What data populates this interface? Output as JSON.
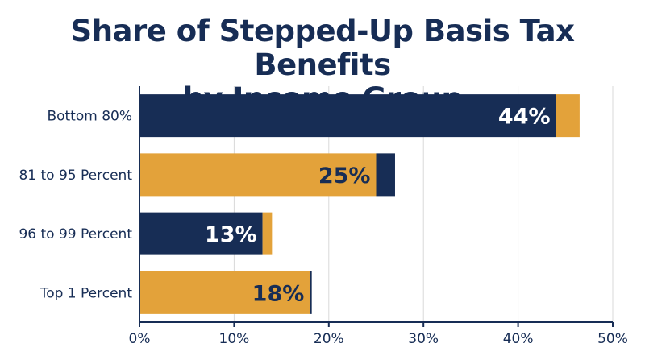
{
  "chart_data": {
    "type": "bar",
    "orientation": "horizontal",
    "stacked": true,
    "title": "Share of Stepped-Up Basis Tax Benefits\nby Income Group",
    "title_lines": [
      "Share of Stepped-Up Basis Tax Benefits",
      "by Income Group"
    ],
    "categories": [
      "Bottom 80%",
      "81 to 95 Percent",
      "96 to 99 Percent",
      "Top 1 Percent"
    ],
    "values": [
      44,
      25,
      13,
      18
    ],
    "totals": [
      46.5,
      27,
      14,
      18.2
    ],
    "data_labels": [
      "44%",
      "25%",
      "13%",
      "18%"
    ],
    "xlim": [
      0,
      50
    ],
    "xticks": [
      0,
      10,
      20,
      30,
      40,
      50
    ],
    "xtick_labels": [
      "0%",
      "10%",
      "20%",
      "30%",
      "40%",
      "50%"
    ],
    "xlabel": "",
    "ylabel": "",
    "grid": true,
    "legend": "none",
    "colors": {
      "navy": "#172d55",
      "gold": "#e3a23a",
      "grid": "#d9d9d9"
    },
    "bar_primary_colors": [
      "navy",
      "gold",
      "navy",
      "gold"
    ]
  }
}
